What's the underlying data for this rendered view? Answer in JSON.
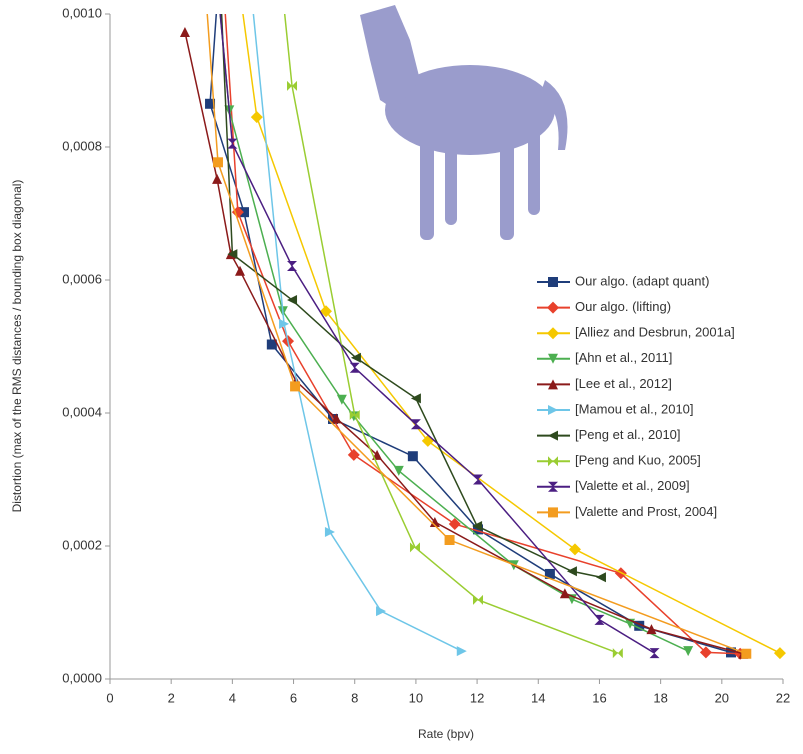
{
  "chart_data": {
    "type": "line",
    "y_label": "Distortion (max of the RMS distances / bounding box diagonal)",
    "x_label": "Rate (bpv)",
    "xlim": [
      0,
      22
    ],
    "xticks": [
      0,
      2,
      4,
      6,
      8,
      10,
      12,
      14,
      16,
      18,
      20,
      22
    ],
    "ylim": [
      0,
      0.001
    ],
    "yticks": [
      {
        "value": 0,
        "label": "0,0000"
      },
      {
        "value": 0.0002,
        "label": "0,0002"
      },
      {
        "value": 0.0004,
        "label": "0,0004"
      },
      {
        "value": 0.0006,
        "label": "0,0006"
      },
      {
        "value": 0.0008,
        "label": "0,0008"
      },
      {
        "value": 0.001,
        "label": "0,0010"
      }
    ],
    "series": [
      {
        "name": "Our algo. (adapt quant)",
        "color": "#1f3d7a",
        "marker": "square",
        "x": [
          3.55,
          3.27,
          4.38,
          5.29,
          7.29,
          9.9,
          12.03,
          14.38,
          17.3,
          20.3
        ],
        "values": [
          0.00105,
          0.000865,
          0.000702,
          0.000503,
          0.000391,
          0.000335,
          0.000225,
          0.000158,
          8e-05,
          4e-05
        ]
      },
      {
        "name": "Our algo. (lifting)",
        "color": "#e8412c",
        "marker": "diamond",
        "x": [
          3.7,
          4.18,
          5.82,
          7.97,
          11.27,
          16.7,
          19.48,
          20.6
        ],
        "values": [
          0.00105,
          0.000702,
          0.000508,
          0.000337,
          0.000233,
          0.000159,
          4e-05,
          3.8e-05
        ]
      },
      {
        "name": "[Alliez and Desbrun, 2001a]",
        "color": "#f5c800",
        "marker": "diamond",
        "x": [
          4.2,
          4.8,
          7.06,
          10.39,
          15.2,
          21.9
        ],
        "values": [
          0.00105,
          0.000845,
          0.000553,
          0.000358,
          0.000195,
          3.9e-05
        ]
      },
      {
        "name": "[Ahn et al., 2011]",
        "color": "#4caf50",
        "marker": "triangle-down",
        "x": [
          3.5,
          3.9,
          5.65,
          7.58,
          7.97,
          9.44,
          13.2,
          15.1,
          17.0,
          18.9
        ],
        "values": [
          0.00105,
          0.000855,
          0.000553,
          0.00042,
          0.000395,
          0.000313,
          0.000171,
          0.00012,
          8.3e-05,
          4.2e-05
        ]
      },
      {
        "name": "[Lee et al., 2012]",
        "color": "#8b1a1a",
        "marker": "triangle-up",
        "x": [
          2.45,
          3.5,
          3.95,
          4.25,
          6.08,
          7.4,
          8.73,
          10.62,
          14.87,
          17.7,
          20.7
        ],
        "values": [
          0.000973,
          0.000752,
          0.000639,
          0.000614,
          0.000448,
          0.000392,
          0.000337,
          0.000236,
          0.000129,
          7.5e-05,
          3.8e-05
        ]
      },
      {
        "name": "[Mamou et al., 2010]",
        "color": "#6ec6e8",
        "marker": "triangle-right",
        "x": [
          4.58,
          5.69,
          7.19,
          8.86,
          11.5
        ],
        "values": [
          0.00105,
          0.000534,
          0.000221,
          0.000102,
          4.2e-05
        ]
      },
      {
        "name": "[Peng et al., 2010]",
        "color": "#2e4a1e",
        "marker": "triangle-left",
        "x": [
          3.6,
          4.0,
          5.95,
          8.04,
          10.0,
          12.0,
          15.1,
          16.05
        ],
        "values": [
          0.00105,
          0.000639,
          0.00057,
          0.000483,
          0.000422,
          0.00023,
          0.000162,
          0.000153
        ]
      },
      {
        "name": "[Peng and Kuo, 2005]",
        "color": "#9acd32",
        "marker": "bowtie",
        "x": [
          5.6,
          5.95,
          8.0,
          9.97,
          12.03,
          16.6
        ],
        "values": [
          0.00105,
          0.000892,
          0.000397,
          0.000198,
          0.000119,
          3.9e-05
        ]
      },
      {
        "name": "[Valette et al., 2009]",
        "color": "#4b1e82",
        "marker": "hourglass",
        "x": [
          3.5,
          4.0,
          5.95,
          8.0,
          10.0,
          12.03,
          16.0,
          17.8
        ],
        "values": [
          0.00105,
          0.000805,
          0.000621,
          0.000468,
          0.000383,
          0.0003,
          8.9e-05,
          3.9e-05
        ]
      },
      {
        "name": "[Valette and Prost, 2004]",
        "color": "#f39c1f",
        "marker": "square",
        "x": [
          3.1,
          3.53,
          6.05,
          11.1,
          20.8
        ],
        "values": [
          0.00105,
          0.000777,
          0.00044,
          0.000209,
          3.8e-05
        ]
      }
    ]
  }
}
